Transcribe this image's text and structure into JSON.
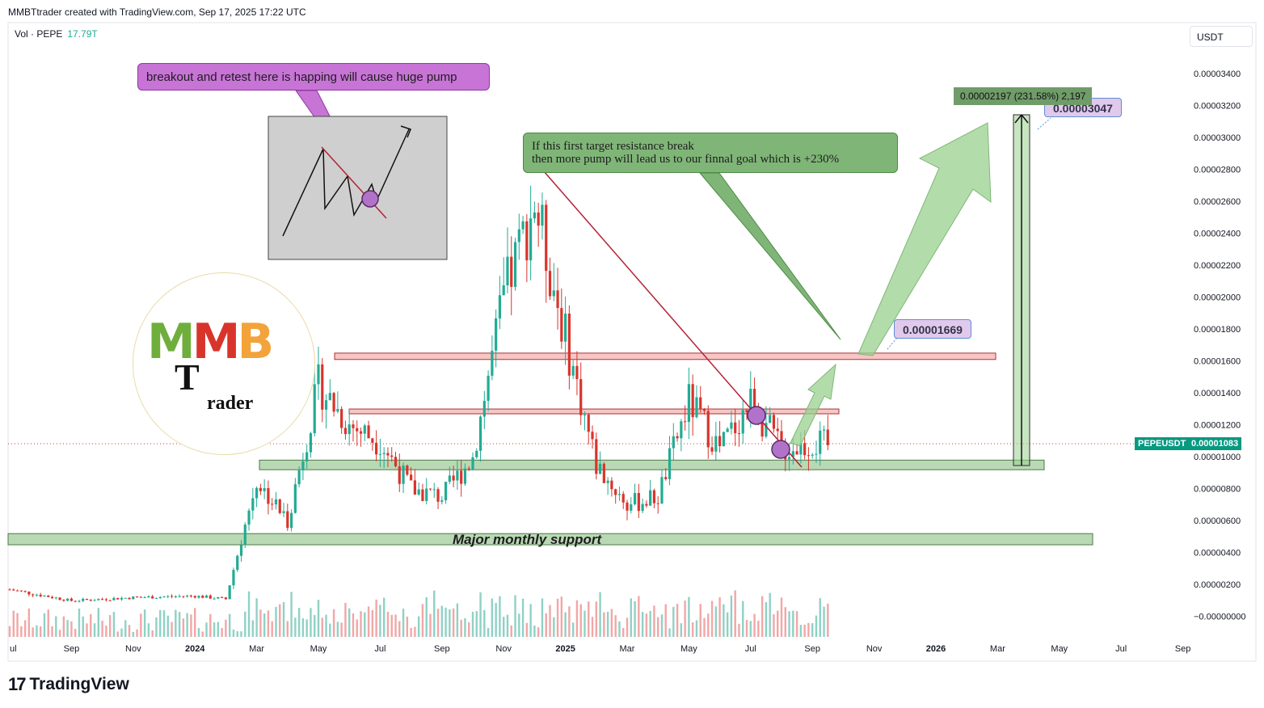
{
  "header": {
    "text": "MMBTtrader created with TradingView.com, Sep 17, 2025 17:22 UTC"
  },
  "volume_legend": {
    "label": "Vol · PEPE",
    "value": "17.79T"
  },
  "currency": "USDT",
  "footer": {
    "brand": "TradingView",
    "mark": "17"
  },
  "symbol_tag": {
    "symbol": "PEPEUSDT",
    "price": "0.00001083",
    "color": "#089981"
  },
  "annotations": {
    "purple_callout": "breakout and retest here is happing will cause huge pump",
    "green_callout_line1": "If this first target resistance break",
    "green_callout_line2": "then more pump will lead us to our finnal goal which is +230%",
    "support_label": "Major monthly support",
    "price_label_1": "0.00001669",
    "price_label_2": "0.00003047",
    "measure_label": "0.00002197 (231.58%) 2,197"
  },
  "logo": {
    "letters": [
      "M",
      "M",
      "B"
    ],
    "t_letter": "T",
    "rest": "rader"
  },
  "colors": {
    "up": "#22ab94",
    "down": "#d9342b",
    "resistance_fill": "#f7c6c6",
    "support_fill": "#b9d9b4",
    "arrow_fill": "#9ad08f",
    "trendline": "#b22234"
  },
  "chart_data": {
    "type": "candlestick",
    "title": "",
    "xlabel": "",
    "ylabel": "",
    "y_unit": "USDT",
    "ylim": [
      -1e-06,
      3.5e-05
    ],
    "x_tick_labels": [
      "ul",
      "Sep",
      "Nov",
      "2024",
      "Mar",
      "May",
      "Jul",
      "Sep",
      "Nov",
      "2025",
      "Mar",
      "May",
      "Jul",
      "Sep",
      "Nov",
      "2026",
      "Mar",
      "May",
      "Jul",
      "Sep"
    ],
    "y_tick_labels": [
      "0.00003400",
      "0.00003200",
      "0.00003000",
      "0.00002800",
      "0.00002600",
      "0.00002400",
      "0.00002200",
      "0.00002000",
      "0.00001800",
      "0.00001600",
      "0.00001400",
      "0.00001200",
      "0.00001000",
      "0.00000800",
      "0.00000600",
      "0.00000400",
      "0.00000200",
      "−0.00000000"
    ],
    "series": [
      {
        "name": "PEPEUSDT",
        "approx_close_path": [
          {
            "x": "2023-07",
            "y": 1.7e-06
          },
          {
            "x": "2023-09",
            "y": 1e-06
          },
          {
            "x": "2023-11",
            "y": 1.2e-06
          },
          {
            "x": "2024-01",
            "y": 1.3e-06
          },
          {
            "x": "2024-02",
            "y": 1.1e-06
          },
          {
            "x": "2024-03",
            "y": 8.5e-06
          },
          {
            "x": "2024-04",
            "y": 6e-06
          },
          {
            "x": "2024-05",
            "y": 1.45e-05
          },
          {
            "x": "2024-06",
            "y": 1.2e-05
          },
          {
            "x": "2024-07",
            "y": 1.1e-05
          },
          {
            "x": "2024-08",
            "y": 8e-06
          },
          {
            "x": "2024-09",
            "y": 7.5e-06
          },
          {
            "x": "2024-10",
            "y": 1e-05
          },
          {
            "x": "2024-11",
            "y": 2e-05
          },
          {
            "x": "2024-12",
            "y": 2.6e-05
          },
          {
            "x": "2025-01",
            "y": 1.75e-05
          },
          {
            "x": "2025-02",
            "y": 9.5e-06
          },
          {
            "x": "2025-03",
            "y": 7e-06
          },
          {
            "x": "2025-04",
            "y": 7.5e-06
          },
          {
            "x": "2025-05",
            "y": 1.35e-05
          },
          {
            "x": "2025-06",
            "y": 1.05e-05
          },
          {
            "x": "2025-07",
            "y": 1.35e-05
          },
          {
            "x": "2025-08",
            "y": 1.05e-05
          },
          {
            "x": "2025-09",
            "y": 1.08e-05
          }
        ]
      }
    ],
    "zones": {
      "resistance_upper": [
        1.61e-05,
        1.65e-05
      ],
      "resistance_lower": [
        1.27e-05,
        1.3e-05
      ],
      "support_near": [
        9.2e-06,
        9.8e-06
      ],
      "major_monthly_support": [
        4.5e-06,
        5.2e-06
      ]
    },
    "current_price": 1.083e-05,
    "grid": false,
    "legend": "top-left"
  }
}
